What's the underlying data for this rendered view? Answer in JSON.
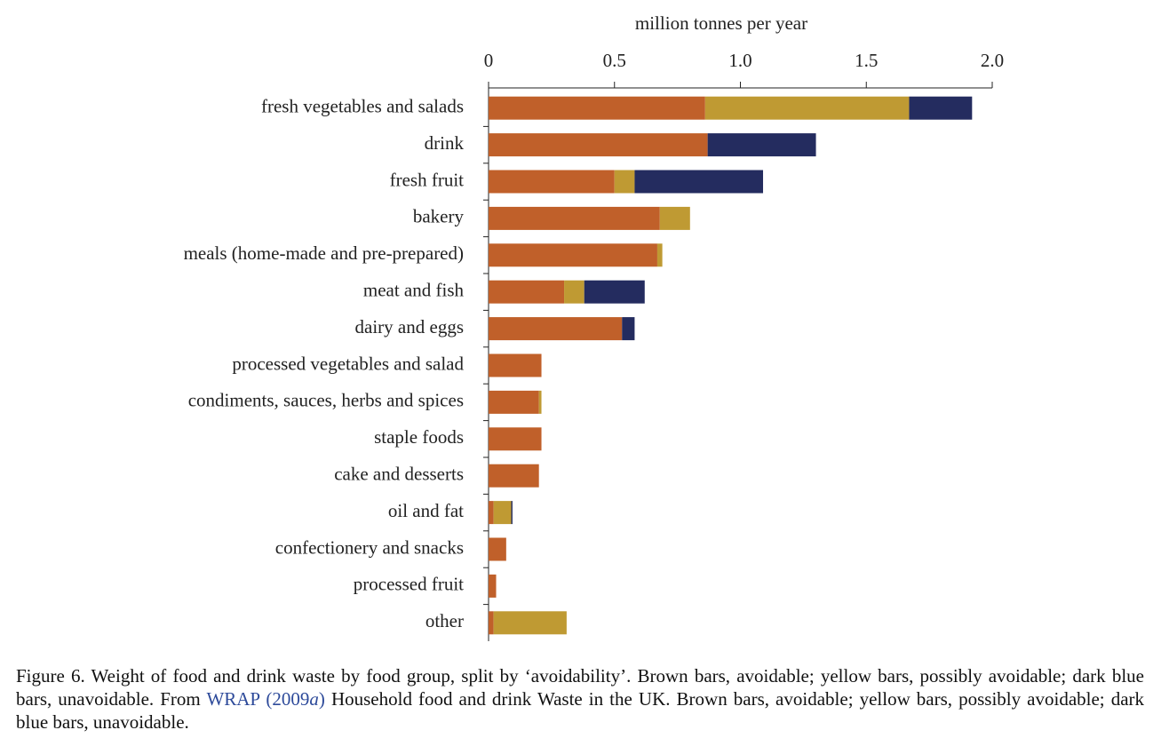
{
  "chart_data": {
    "type": "stacked-bar-horizontal",
    "x_label": "million tonnes per year",
    "categories": [
      "fresh vegetables and salads",
      "drink",
      "fresh fruit",
      "bakery",
      "meals (home-made and pre-prepared)",
      "meat and fish",
      "dairy and eggs",
      "processed vegetables and salad",
      "condiments, sauces, herbs and spices",
      "staple foods",
      "cake and desserts",
      "oil and fat",
      "confectionery and snacks",
      "processed fruit",
      "other"
    ],
    "series": [
      {
        "color": "#c0602a",
        "values": [
          0.86,
          0.87,
          0.5,
          0.68,
          0.67,
          0.3,
          0.53,
          0.21,
          0.2,
          0.21,
          0.2,
          0.02,
          0.07,
          0.03,
          0.02
        ]
      },
      {
        "color": "#bf9a33",
        "values": [
          0.81,
          0,
          0.08,
          0.12,
          0.02,
          0.08,
          0,
          0,
          0.01,
          0,
          0,
          0.07,
          0,
          0,
          0.29
        ]
      },
      {
        "color": "#242c5f",
        "values": [
          0.25,
          0.43,
          0.51,
          0,
          0,
          0.24,
          0.05,
          0,
          0,
          0,
          0,
          0.005,
          0,
          0,
          0
        ]
      }
    ],
    "xlim": [
      0,
      2
    ],
    "xticks": [
      0,
      0.5,
      {
        "value": 1,
        "label": "1.0"
      },
      1.5,
      {
        "value": 2,
        "label": "2.0"
      }
    ]
  },
  "caption": {
    "text1": "Figure 6. Weight of food and drink waste by food group, split by ‘avoidability’. Brown bars, avoidable; yellow bars, possibly avoidable; dark blue bars, unavoidable. From ",
    "link_text": "WRAP (2009",
    "link_italic": "a",
    "link_close": ")",
    "text2": " Household food and drink Waste in the UK. Brown bars, avoidable; yellow bars, possibly avoidable; dark blue bars, unavoidable."
  }
}
